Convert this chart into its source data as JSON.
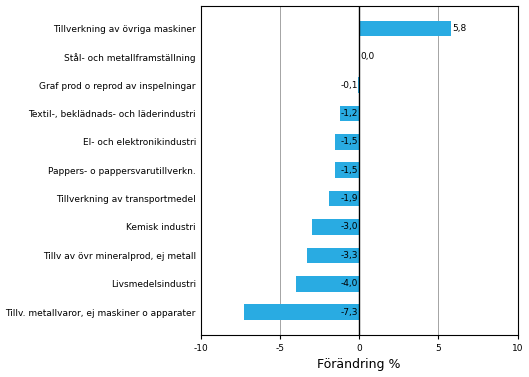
{
  "categories": [
    "Tillv. metallvaror, ej maskiner o apparater",
    "Livsmedelsindustri",
    "Tillv av övr mineralprod, ej metall",
    "Kemisk industri",
    "Tillverkning av transportmedel",
    "Pappers- o pappersvarutillverkn.",
    "El- och elektronikindustri",
    "Textil-, beklädnads- och läderindustri",
    "Graf prod o reprod av inspelningar",
    "Stål- och metallframställning",
    "Tillverkning av övriga maskiner"
  ],
  "values": [
    -7.3,
    -4.0,
    -3.3,
    -3.0,
    -1.9,
    -1.5,
    -1.5,
    -1.2,
    -0.1,
    0.0,
    5.8
  ],
  "bar_color": "#29abe2",
  "xlabel": "Förändring %",
  "xlim": [
    -10,
    10
  ],
  "xticks": [
    -10,
    -5,
    0,
    5,
    10
  ],
  "label_fontsize": 6.5,
  "xlabel_fontsize": 9,
  "value_label_fontsize": 6.5,
  "background_color": "#ffffff"
}
